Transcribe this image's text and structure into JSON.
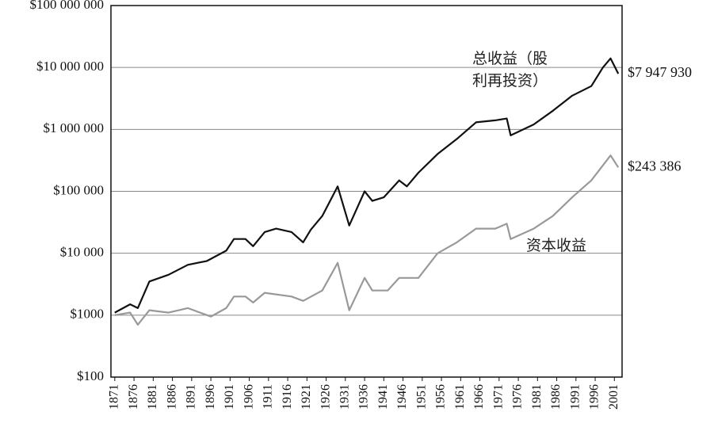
{
  "chart_data": {
    "type": "line",
    "xlim": [
      1870,
      2003
    ],
    "xticks": [
      1871,
      1876,
      1881,
      1886,
      1891,
      1896,
      1901,
      1906,
      1911,
      1916,
      1921,
      1926,
      1931,
      1936,
      1941,
      1946,
      1951,
      1956,
      1961,
      1966,
      1971,
      1976,
      1981,
      1986,
      1991,
      1996,
      2001
    ],
    "log_scale": true,
    "ylim": [
      100,
      100000000
    ],
    "yticks": [
      {
        "value": 100,
        "label": "$100"
      },
      {
        "value": 1000,
        "label": "$1000"
      },
      {
        "value": 10000,
        "label": "$10 000"
      },
      {
        "value": 100000,
        "label": "$100 000"
      },
      {
        "value": 1000000,
        "label": "$1 000 000"
      },
      {
        "value": 10000000,
        "label": "$10 000 000"
      },
      {
        "value": 100000000,
        "label": "$100 000 000"
      }
    ],
    "grid": true,
    "series": [
      {
        "name": "总收益（股利再投资）",
        "color": "#111111",
        "x": [
          1871,
          1875,
          1877,
          1880,
          1885,
          1890,
          1895,
          1900,
          1902,
          1905,
          1907,
          1910,
          1913,
          1917,
          1920,
          1922,
          1925,
          1929,
          1932,
          1936,
          1938,
          1941,
          1945,
          1947,
          1950,
          1955,
          1960,
          1965,
          1970,
          1973,
          1974,
          1980,
          1985,
          1990,
          1995,
          1998,
          2000,
          2002
        ],
        "values": [
          1100,
          1500,
          1300,
          3500,
          4500,
          6500,
          7500,
          11000,
          17000,
          17000,
          13000,
          22000,
          25000,
          22000,
          15000,
          24000,
          40000,
          120000,
          28000,
          100000,
          70000,
          80000,
          150000,
          120000,
          200000,
          400000,
          700000,
          1300000,
          1400000,
          1500000,
          800000,
          1200000,
          2000000,
          3500000,
          5000000,
          10000000,
          14000000,
          7947930
        ],
        "value_labels": [
          null,
          null,
          null,
          null,
          null,
          null,
          null,
          null,
          null,
          null,
          null,
          null,
          null,
          null,
          null,
          null,
          null,
          null,
          null,
          null,
          null,
          null,
          null,
          null,
          null,
          null,
          null,
          null,
          null,
          null,
          null,
          null,
          null,
          null,
          null,
          null,
          null,
          "$7 947 930"
        ]
      },
      {
        "name": "资本收益",
        "color": "#999999",
        "x": [
          1871,
          1875,
          1877,
          1880,
          1885,
          1890,
          1895,
          1896,
          1900,
          1902,
          1905,
          1907,
          1910,
          1917,
          1920,
          1925,
          1929,
          1932,
          1936,
          1938,
          1942,
          1945,
          1950,
          1955,
          1960,
          1965,
          1970,
          1973,
          1974,
          1980,
          1985,
          1990,
          1995,
          2000,
          2002
        ],
        "values": [
          1000,
          1100,
          700,
          1200,
          1100,
          1300,
          1000,
          950,
          1300,
          2000,
          2000,
          1600,
          2300,
          2000,
          1700,
          2500,
          7000,
          1200,
          4000,
          2500,
          2500,
          4000,
          4000,
          10000,
          15000,
          25000,
          25000,
          30000,
          17000,
          25000,
          40000,
          80000,
          150000,
          380000,
          243386
        ],
        "value_labels": [
          null,
          null,
          null,
          null,
          null,
          null,
          null,
          null,
          null,
          null,
          null,
          null,
          null,
          null,
          null,
          null,
          null,
          null,
          null,
          null,
          null,
          null,
          null,
          null,
          null,
          null,
          null,
          null,
          null,
          null,
          null,
          null,
          null,
          null,
          "$243 386"
        ]
      }
    ]
  }
}
